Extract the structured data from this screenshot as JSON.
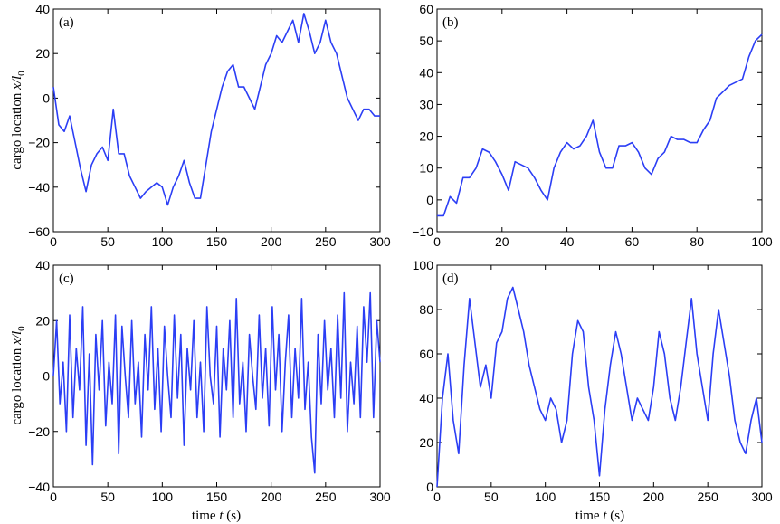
{
  "figure": {
    "ylabel_text": "cargo location ",
    "ylabel_math": "x/l",
    "ylabel_sub": "0",
    "xlabel_text": "time ",
    "xlabel_math": "t",
    "xlabel_unit": " (s)"
  },
  "colors": {
    "series": "#2b3ef5",
    "axes": "#000000",
    "background": "#ffffff"
  },
  "chart_data": [
    {
      "type": "line",
      "label": "(a)",
      "xlim": [
        0,
        300
      ],
      "ylim": [
        -60,
        40
      ],
      "xticks": [
        "0",
        "50",
        "100",
        "150",
        "200",
        "250",
        "300"
      ],
      "yticks": [
        "-60",
        "-40",
        "-20",
        "0",
        "20",
        "40"
      ],
      "xlabel": "",
      "ylabel": "cargo location x/l0",
      "series": [
        {
          "x": [
            0,
            5,
            10,
            15,
            20,
            25,
            30,
            35,
            40,
            45,
            50,
            55,
            60,
            65,
            70,
            75,
            80,
            85,
            90,
            95,
            100,
            105,
            110,
            115,
            120,
            125,
            130,
            135,
            140,
            145,
            150,
            155,
            160,
            165,
            170,
            175,
            180,
            185,
            190,
            195,
            200,
            205,
            210,
            215,
            220,
            225,
            230,
            235,
            240,
            245,
            250,
            255,
            260,
            265,
            270,
            275,
            280,
            285,
            290,
            295,
            300
          ],
          "y": [
            5,
            -12,
            -15,
            -8,
            -20,
            -32,
            -42,
            -30,
            -25,
            -22,
            -28,
            -5,
            -25,
            -25,
            -35,
            -40,
            -45,
            -42,
            -40,
            -38,
            -40,
            -48,
            -40,
            -35,
            -28,
            -38,
            -45,
            -45,
            -30,
            -15,
            -5,
            5,
            12,
            15,
            5,
            5,
            0,
            -5,
            5,
            15,
            20,
            28,
            25,
            30,
            35,
            25,
            38,
            30,
            20,
            25,
            35,
            25,
            20,
            10,
            0,
            -5,
            -10,
            -5,
            -5,
            -8,
            -8
          ]
        }
      ]
    },
    {
      "type": "line",
      "label": "(b)",
      "xlim": [
        0,
        100
      ],
      "ylim": [
        -10,
        60
      ],
      "xticks": [
        "0",
        "20",
        "40",
        "60",
        "80",
        "100"
      ],
      "yticks": [
        "-10",
        "0",
        "10",
        "20",
        "30",
        "40",
        "50",
        "60"
      ],
      "xlabel": "",
      "ylabel": "",
      "series": [
        {
          "x": [
            0,
            2,
            4,
            6,
            8,
            10,
            12,
            14,
            16,
            18,
            20,
            22,
            24,
            26,
            28,
            30,
            32,
            34,
            36,
            38,
            40,
            42,
            44,
            46,
            48,
            50,
            52,
            54,
            56,
            58,
            60,
            62,
            64,
            66,
            68,
            70,
            72,
            74,
            76,
            78,
            80,
            82,
            84,
            86,
            88,
            90,
            92,
            94,
            96,
            98,
            100
          ],
          "y": [
            -5,
            -5,
            1,
            -1,
            7,
            7,
            10,
            16,
            15,
            12,
            8,
            3,
            12,
            11,
            10,
            7,
            3,
            0,
            10,
            15,
            18,
            16,
            17,
            20,
            25,
            15,
            10,
            10,
            17,
            17,
            18,
            15,
            10,
            8,
            13,
            15,
            20,
            19,
            19,
            18,
            18,
            22,
            25,
            32,
            34,
            36,
            37,
            38,
            45,
            50,
            52
          ]
        }
      ]
    },
    {
      "type": "line",
      "label": "(c)",
      "xlim": [
        0,
        300
      ],
      "ylim": [
        -40,
        40
      ],
      "xticks": [
        "0",
        "50",
        "100",
        "150",
        "200",
        "250",
        "300"
      ],
      "yticks": [
        "-40",
        "-20",
        "0",
        "20",
        "40"
      ],
      "xlabel": "time t (s)",
      "ylabel": "cargo location x/l0",
      "series": [
        {
          "x": [
            0,
            3,
            6,
            9,
            12,
            15,
            18,
            21,
            24,
            27,
            30,
            33,
            36,
            39,
            42,
            45,
            48,
            51,
            54,
            57,
            60,
            63,
            66,
            69,
            72,
            75,
            78,
            81,
            84,
            87,
            90,
            93,
            96,
            99,
            102,
            105,
            108,
            111,
            114,
            117,
            120,
            123,
            126,
            129,
            132,
            135,
            138,
            141,
            144,
            147,
            150,
            153,
            156,
            159,
            162,
            165,
            168,
            171,
            174,
            177,
            180,
            183,
            186,
            189,
            192,
            195,
            198,
            201,
            204,
            207,
            210,
            213,
            216,
            219,
            222,
            225,
            228,
            231,
            234,
            237,
            240,
            243,
            246,
            249,
            252,
            255,
            258,
            261,
            264,
            267,
            270,
            273,
            276,
            279,
            282,
            285,
            288,
            291,
            294,
            297,
            300
          ],
          "y": [
            0,
            20,
            -10,
            5,
            -20,
            22,
            -15,
            10,
            -5,
            25,
            -25,
            8,
            -32,
            15,
            -5,
            20,
            -18,
            5,
            -10,
            22,
            -28,
            18,
            0,
            -15,
            20,
            -10,
            5,
            -22,
            15,
            -5,
            25,
            -12,
            10,
            -20,
            18,
            0,
            -15,
            22,
            -8,
            15,
            -25,
            10,
            -5,
            20,
            -15,
            5,
            -20,
            25,
            0,
            -10,
            18,
            -22,
            10,
            -5,
            20,
            -15,
            28,
            -10,
            5,
            -20,
            15,
            0,
            -12,
            22,
            -8,
            10,
            -18,
            25,
            -5,
            15,
            -20,
            5,
            22,
            -15,
            10,
            -8,
            28,
            -12,
            5,
            -22,
            -35,
            15,
            -10,
            20,
            -5,
            10,
            -15,
            22,
            -8,
            30,
            -20,
            5,
            -10,
            18,
            -15,
            25,
            5,
            30,
            -15,
            20,
            5
          ]
        }
      ]
    },
    {
      "type": "line",
      "label": "(d)",
      "xlim": [
        0,
        300
      ],
      "ylim": [
        0,
        100
      ],
      "xticks": [
        "0",
        "50",
        "100",
        "150",
        "200",
        "250",
        "300"
      ],
      "yticks": [
        "0",
        "20",
        "40",
        "60",
        "80",
        "100"
      ],
      "xlabel": "time t (s)",
      "ylabel": "",
      "series": [
        {
          "x": [
            0,
            5,
            10,
            15,
            20,
            25,
            30,
            35,
            40,
            45,
            50,
            55,
            60,
            65,
            70,
            75,
            80,
            85,
            90,
            95,
            100,
            105,
            110,
            115,
            120,
            125,
            130,
            135,
            140,
            145,
            150,
            155,
            160,
            165,
            170,
            175,
            180,
            185,
            190,
            195,
            200,
            205,
            210,
            215,
            220,
            225,
            230,
            235,
            240,
            245,
            250,
            255,
            260,
            265,
            270,
            275,
            280,
            285,
            290,
            295,
            300
          ],
          "y": [
            0,
            40,
            60,
            30,
            15,
            55,
            85,
            65,
            45,
            55,
            40,
            65,
            70,
            85,
            90,
            80,
            70,
            55,
            45,
            35,
            30,
            40,
            35,
            20,
            30,
            60,
            75,
            70,
            45,
            30,
            5,
            35,
            55,
            70,
            60,
            45,
            30,
            40,
            35,
            30,
            45,
            70,
            60,
            40,
            30,
            45,
            65,
            85,
            60,
            45,
            30,
            60,
            80,
            65,
            50,
            30,
            20,
            15,
            30,
            40,
            20
          ]
        }
      ]
    }
  ]
}
